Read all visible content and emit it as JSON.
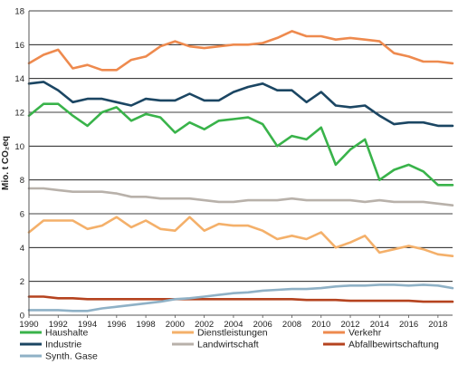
{
  "chart_data": {
    "type": "line",
    "ylabel": "Mio. t CO₂eq",
    "ylim": [
      0,
      18
    ],
    "y_ticks": [
      0,
      2,
      4,
      6,
      8,
      10,
      12,
      14,
      16,
      18
    ],
    "xlim": [
      1990,
      2019
    ],
    "x_ticks": [
      1990,
      1992,
      1994,
      1996,
      1998,
      2000,
      2002,
      2004,
      2006,
      2008,
      2010,
      2012,
      2014,
      2016,
      2018
    ],
    "grid": "horizontal",
    "legend_position": "bottom",
    "x": [
      1990,
      1991,
      1992,
      1993,
      1994,
      1995,
      1996,
      1997,
      1998,
      1999,
      2000,
      2001,
      2002,
      2003,
      2004,
      2005,
      2006,
      2007,
      2008,
      2009,
      2010,
      2011,
      2012,
      2013,
      2014,
      2015,
      2016,
      2017,
      2018,
      2019
    ],
    "series": [
      {
        "name": "Haushalte",
        "color": "#39b34a",
        "values": [
          11.8,
          12.5,
          12.5,
          11.8,
          11.2,
          12.0,
          12.3,
          11.5,
          11.9,
          11.7,
          10.8,
          11.4,
          11.0,
          11.5,
          11.6,
          11.7,
          11.3,
          10.0,
          10.6,
          10.4,
          11.1,
          8.9,
          9.8,
          10.4,
          8.0,
          8.6,
          8.9,
          8.5,
          7.7,
          7.7
        ]
      },
      {
        "name": "Dienstleistungen",
        "color": "#f4b06a",
        "values": [
          4.9,
          5.6,
          5.6,
          5.6,
          5.1,
          5.3,
          5.8,
          5.2,
          5.6,
          5.1,
          5.0,
          5.8,
          5.0,
          5.4,
          5.3,
          5.3,
          5.0,
          4.5,
          4.7,
          4.5,
          4.9,
          4.0,
          4.3,
          4.7,
          3.7,
          3.9,
          4.1,
          3.9,
          3.6,
          3.5
        ]
      },
      {
        "name": "Verkehr",
        "color": "#ee8a4e",
        "values": [
          14.9,
          15.4,
          15.7,
          14.6,
          14.8,
          14.5,
          14.5,
          15.1,
          15.3,
          15.9,
          16.2,
          15.9,
          15.8,
          15.9,
          16.0,
          16.0,
          16.1,
          16.4,
          16.8,
          16.5,
          16.5,
          16.3,
          16.4,
          16.3,
          16.2,
          15.5,
          15.3,
          15.0,
          15.0,
          14.9
        ]
      },
      {
        "name": "Industrie",
        "color": "#1b4663",
        "values": [
          13.7,
          13.8,
          13.3,
          12.6,
          12.8,
          12.8,
          12.6,
          12.4,
          12.8,
          12.7,
          12.7,
          13.1,
          12.7,
          12.7,
          13.2,
          13.5,
          13.7,
          13.3,
          13.3,
          12.6,
          13.2,
          12.4,
          12.3,
          12.4,
          11.8,
          11.3,
          11.4,
          11.4,
          11.2,
          11.2
        ]
      },
      {
        "name": "Landwirtschaft",
        "color": "#b8b1aa",
        "values": [
          7.5,
          7.5,
          7.4,
          7.3,
          7.3,
          7.3,
          7.2,
          7.0,
          7.0,
          6.9,
          6.9,
          6.9,
          6.8,
          6.7,
          6.7,
          6.8,
          6.8,
          6.8,
          6.9,
          6.8,
          6.8,
          6.8,
          6.8,
          6.7,
          6.8,
          6.7,
          6.7,
          6.7,
          6.6,
          6.5
        ]
      },
      {
        "name": "Abfallbewirtschaftung",
        "color": "#b5431f",
        "values": [
          1.1,
          1.1,
          1.0,
          1.0,
          0.95,
          0.95,
          0.95,
          0.95,
          0.95,
          0.95,
          0.95,
          0.95,
          0.95,
          0.95,
          0.95,
          0.95,
          0.95,
          0.95,
          0.95,
          0.9,
          0.9,
          0.9,
          0.85,
          0.85,
          0.85,
          0.85,
          0.85,
          0.8,
          0.8,
          0.8
        ]
      },
      {
        "name": "Synth. Gase",
        "color": "#8fb1c6",
        "values": [
          0.3,
          0.3,
          0.3,
          0.25,
          0.25,
          0.4,
          0.5,
          0.6,
          0.7,
          0.8,
          0.95,
          1.0,
          1.1,
          1.2,
          1.3,
          1.35,
          1.45,
          1.5,
          1.55,
          1.55,
          1.6,
          1.7,
          1.75,
          1.75,
          1.8,
          1.8,
          1.75,
          1.8,
          1.75,
          1.6
        ]
      }
    ]
  }
}
